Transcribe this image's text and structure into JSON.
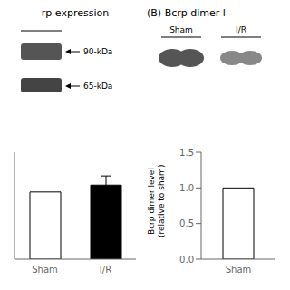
{
  "chart_data": [
    {
      "type": "blot",
      "title": "rp expression",
      "annotations": [
        "90-kDa",
        "65-kDa"
      ]
    },
    {
      "type": "blot",
      "title": "(B) Bcrp dimer l",
      "annotations": [
        "Sham",
        "I/R"
      ]
    },
    {
      "type": "bar",
      "categories": [
        "Sham",
        "I/R"
      ],
      "values": [
        0.88,
        0.97
      ],
      "errors": [
        0.0,
        0.12
      ],
      "colors": [
        "white",
        "black"
      ],
      "ylim": [
        0,
        1.4
      ],
      "tick_labels": "x"
    },
    {
      "type": "bar",
      "categories": [
        "Sham"
      ],
      "values": [
        1.0
      ],
      "colors": [
        "white"
      ],
      "ylabel": "Bcrp dimer level\n(relative to sham)",
      "ylim": [
        0,
        1.5
      ],
      "yticks": [
        {
          "value": 0,
          "label": "0.0"
        },
        0.5,
        {
          "value": 1,
          "label": "1.0"
        },
        1.5
      ]
    }
  ]
}
